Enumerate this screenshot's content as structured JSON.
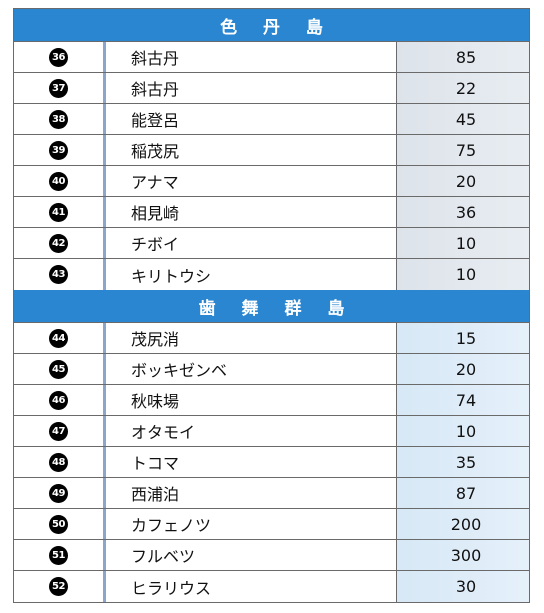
{
  "sections": [
    {
      "title": "色 丹 島",
      "rows": [
        {
          "num": "36",
          "name": "斜古丹",
          "value": "85"
        },
        {
          "num": "37",
          "name": "斜古丹",
          "value": "22"
        },
        {
          "num": "38",
          "name": "能登呂",
          "value": "45"
        },
        {
          "num": "39",
          "name": "稲茂尻",
          "value": "75"
        },
        {
          "num": "40",
          "name": "アナマ",
          "value": "20"
        },
        {
          "num": "41",
          "name": "相見崎",
          "value": "36"
        },
        {
          "num": "42",
          "name": "チボイ",
          "value": "10"
        },
        {
          "num": "43",
          "name": "キリトウシ",
          "value": "10"
        }
      ]
    },
    {
      "title": "歯 舞 群 島",
      "rows": [
        {
          "num": "44",
          "name": "茂尻消",
          "value": "15"
        },
        {
          "num": "45",
          "name": "ボッキゼンベ",
          "value": "20"
        },
        {
          "num": "46",
          "name": "秋味場",
          "value": "74"
        },
        {
          "num": "47",
          "name": "オタモイ",
          "value": "10"
        },
        {
          "num": "48",
          "name": "トコマ",
          "value": "35"
        },
        {
          "num": "49",
          "name": "西浦泊",
          "value": "87"
        },
        {
          "num": "50",
          "name": "カフェノツ",
          "value": "200"
        },
        {
          "num": "51",
          "name": "フルベツ",
          "value": "300"
        },
        {
          "num": "52",
          "name": "ヒラリウス",
          "value": "30"
        }
      ]
    }
  ]
}
